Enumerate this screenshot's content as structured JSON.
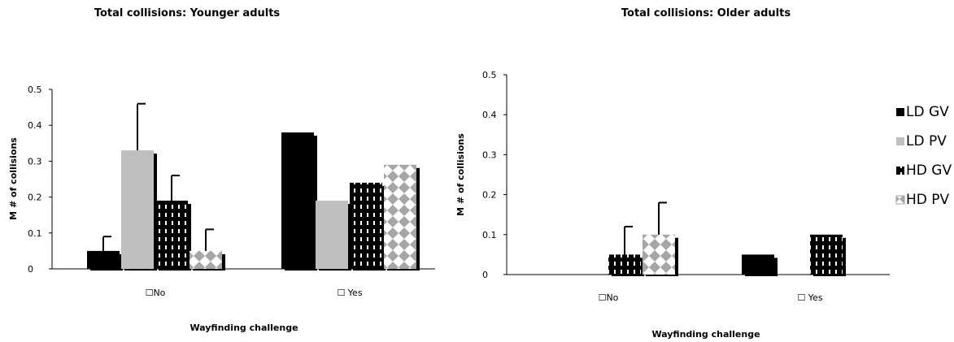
{
  "chart_data": [
    {
      "type": "bar",
      "title": "Total collisions: Younger adults",
      "xlabel": "Wayfinding challenge",
      "ylabel": "M # of collisions",
      "categories": [
        "☐No",
        "☐ Yes"
      ],
      "ylim": [
        0,
        0.5
      ],
      "yticks": [
        "0",
        "0.1",
        "0.2",
        "0.3",
        "0.4",
        "0.5"
      ],
      "series": [
        {
          "name": "LD GV",
          "values": [
            0.05,
            0.38
          ],
          "errors": [
            0.04,
            0
          ]
        },
        {
          "name": "LD PV",
          "values": [
            0.33,
            0.19
          ],
          "errors": [
            0.13,
            0
          ]
        },
        {
          "name": "HD GV",
          "values": [
            0.19,
            0.24
          ],
          "errors": [
            0.07,
            0
          ]
        },
        {
          "name": "HD PV",
          "values": [
            0.05,
            0.29
          ],
          "errors": [
            0.06,
            0
          ]
        }
      ],
      "grid": false
    },
    {
      "type": "bar",
      "title": "Total collisions: Older adults",
      "xlabel": "Wayfinding challenge",
      "ylabel": "M # of collisions",
      "categories": [
        "☐No",
        "☐ Yes"
      ],
      "ylim": [
        0,
        0.5
      ],
      "yticks": [
        "0",
        "0.1",
        "0.2",
        "0.3",
        "0.4",
        "0.5"
      ],
      "series": [
        {
          "name": "LD GV",
          "values": [
            0,
            0.05
          ],
          "errors": [
            0,
            0
          ]
        },
        {
          "name": "LD PV",
          "values": [
            0,
            0
          ],
          "errors": [
            0,
            0
          ]
        },
        {
          "name": "HD GV",
          "values": [
            0.05,
            0.1
          ],
          "errors": [
            0.07,
            0
          ]
        },
        {
          "name": "HD PV",
          "values": [
            0.1,
            0
          ],
          "errors": [
            0.08,
            0
          ]
        }
      ],
      "grid": false,
      "legend": "right"
    }
  ]
}
